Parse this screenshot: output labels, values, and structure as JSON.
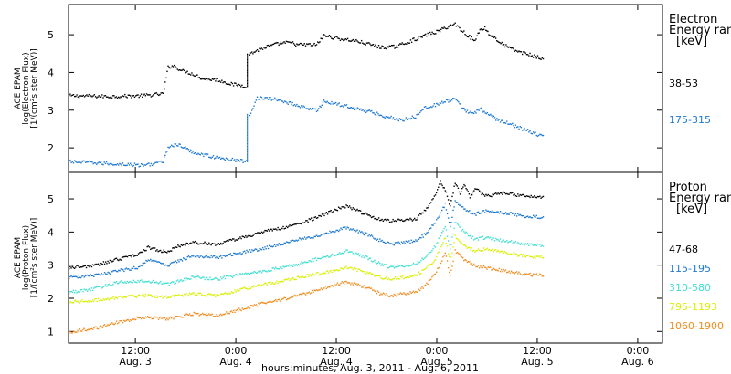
{
  "chart_data": [
    {
      "type": "scatter",
      "ylabel_lines": [
        "ACE EPAM",
        "log(Electron Flux)",
        "[1/(cm²s ster MeV)]"
      ],
      "yticks": [
        2,
        3,
        4,
        5
      ],
      "ylim": [
        1.35,
        5.8
      ],
      "legend_title": [
        "Electron",
        "Energy ran",
        "[keV]"
      ],
      "grid": false,
      "series": [
        {
          "name": "38-53",
          "color": "#000000",
          "x": [
            0,
            0.08,
            0.15,
            0.19,
            0.2,
            0.21,
            0.23,
            0.25,
            0.27,
            0.3,
            0.33,
            0.36,
            0.365,
            0.38,
            0.4,
            0.43,
            0.45,
            0.46,
            0.48,
            0.5,
            0.515,
            0.53,
            0.55,
            0.58,
            0.61,
            0.63,
            0.66,
            0.69,
            0.72,
            0.745,
            0.76,
            0.78,
            0.8,
            0.82,
            0.83,
            0.84,
            0.85,
            0.86,
            0.87,
            0.9,
            0.94,
            0.96
          ],
          "y": [
            3.4,
            3.38,
            3.4,
            3.45,
            4.15,
            4.2,
            4.05,
            3.98,
            3.85,
            3.82,
            3.7,
            3.65,
            4.5,
            4.6,
            4.7,
            4.8,
            4.8,
            4.75,
            4.75,
            4.75,
            5.0,
            4.95,
            4.9,
            4.85,
            4.75,
            4.68,
            4.7,
            4.85,
            5.0,
            5.1,
            5.2,
            5.3,
            5.05,
            4.85,
            5.15,
            5.2,
            5.0,
            4.95,
            4.8,
            4.6,
            4.45,
            4.35
          ]
        },
        {
          "name": "175-315",
          "color": "#1e78d2",
          "x": [
            0,
            0.08,
            0.15,
            0.19,
            0.2,
            0.22,
            0.25,
            0.3,
            0.33,
            0.36,
            0.365,
            0.38,
            0.42,
            0.46,
            0.5,
            0.515,
            0.55,
            0.6,
            0.64,
            0.67,
            0.7,
            0.72,
            0.74,
            0.76,
            0.78,
            0.8,
            0.82,
            0.83,
            0.86,
            0.9,
            0.94,
            0.96
          ],
          "y": [
            1.65,
            1.6,
            1.55,
            1.65,
            2.05,
            2.1,
            1.9,
            1.75,
            1.7,
            1.65,
            2.9,
            3.35,
            3.3,
            3.15,
            3.0,
            3.25,
            3.15,
            3.0,
            2.85,
            2.75,
            2.85,
            3.1,
            3.15,
            3.25,
            3.3,
            3.0,
            2.95,
            3.05,
            2.8,
            2.6,
            2.4,
            2.3
          ]
        }
      ]
    },
    {
      "type": "scatter",
      "ylabel_lines": [
        "ACE EPAM",
        "log(Proton Flux)",
        "[1/(cm²s ster MeV)]"
      ],
      "yticks": [
        1,
        2,
        3,
        4,
        5
      ],
      "ylim": [
        0.65,
        5.8
      ],
      "legend_title": [
        "Proton",
        "Energy ran",
        "[keV]"
      ],
      "grid": false,
      "series": [
        {
          "name": "47-68",
          "color": "#000000",
          "x": [
            0,
            0.05,
            0.1,
            0.14,
            0.16,
            0.2,
            0.22,
            0.25,
            0.3,
            0.35,
            0.4,
            0.45,
            0.5,
            0.54,
            0.56,
            0.6,
            0.63,
            0.65,
            0.7,
            0.72,
            0.74,
            0.75,
            0.76,
            0.77,
            0.78,
            0.79,
            0.8,
            0.81,
            0.82,
            0.84,
            0.88,
            0.92,
            0.96
          ],
          "y": [
            2.95,
            3.0,
            3.2,
            3.35,
            3.55,
            3.4,
            3.6,
            3.7,
            3.65,
            3.85,
            4.05,
            4.2,
            4.45,
            4.7,
            4.8,
            4.55,
            4.4,
            4.35,
            4.4,
            4.7,
            5.1,
            5.55,
            5.3,
            4.8,
            5.5,
            5.2,
            5.45,
            5.05,
            5.35,
            5.1,
            5.2,
            5.1,
            5.05
          ]
        },
        {
          "name": "115-195",
          "color": "#1e78d2",
          "x": [
            0,
            0.05,
            0.1,
            0.14,
            0.16,
            0.2,
            0.22,
            0.25,
            0.3,
            0.35,
            0.4,
            0.45,
            0.5,
            0.54,
            0.56,
            0.6,
            0.63,
            0.65,
            0.7,
            0.72,
            0.74,
            0.76,
            0.77,
            0.78,
            0.8,
            0.82,
            0.84,
            0.88,
            0.92,
            0.96
          ],
          "y": [
            2.65,
            2.7,
            2.85,
            2.95,
            3.2,
            3.0,
            3.15,
            3.3,
            3.25,
            3.4,
            3.55,
            3.75,
            3.9,
            4.05,
            4.15,
            3.95,
            3.75,
            3.65,
            3.75,
            3.95,
            4.3,
            4.85,
            4.2,
            4.95,
            4.7,
            4.55,
            4.65,
            4.6,
            4.5,
            4.45
          ]
        },
        {
          "name": "310-580",
          "color": "#40e0d0",
          "x": [
            0,
            0.05,
            0.1,
            0.15,
            0.2,
            0.25,
            0.3,
            0.35,
            0.4,
            0.45,
            0.5,
            0.54,
            0.56,
            0.6,
            0.63,
            0.65,
            0.7,
            0.72,
            0.74,
            0.76,
            0.77,
            0.78,
            0.8,
            0.82,
            0.84,
            0.88,
            0.92,
            0.96
          ],
          "y": [
            2.2,
            2.3,
            2.5,
            2.55,
            2.45,
            2.65,
            2.6,
            2.75,
            2.85,
            3.0,
            3.2,
            3.35,
            3.45,
            3.25,
            3.05,
            2.95,
            3.05,
            3.25,
            3.6,
            4.2,
            3.5,
            4.3,
            4.0,
            3.8,
            3.85,
            3.75,
            3.65,
            3.6
          ]
        },
        {
          "name": "795-1193",
          "color": "#d8f000",
          "x": [
            0,
            0.05,
            0.1,
            0.15,
            0.2,
            0.25,
            0.3,
            0.35,
            0.4,
            0.45,
            0.5,
            0.54,
            0.56,
            0.6,
            0.63,
            0.65,
            0.7,
            0.72,
            0.74,
            0.76,
            0.77,
            0.78,
            0.8,
            0.82,
            0.84,
            0.88,
            0.92,
            0.96
          ],
          "y": [
            1.9,
            1.95,
            2.05,
            2.1,
            2.05,
            2.15,
            2.1,
            2.3,
            2.45,
            2.6,
            2.75,
            2.85,
            2.95,
            2.8,
            2.65,
            2.6,
            2.7,
            2.9,
            3.2,
            3.85,
            3.1,
            3.9,
            3.6,
            3.45,
            3.5,
            3.4,
            3.3,
            3.25
          ]
        },
        {
          "name": "1060-1900",
          "color": "#f08c1e",
          "x": [
            0,
            0.05,
            0.1,
            0.15,
            0.2,
            0.25,
            0.3,
            0.35,
            0.4,
            0.45,
            0.5,
            0.54,
            0.56,
            0.6,
            0.63,
            0.65,
            0.7,
            0.72,
            0.74,
            0.76,
            0.77,
            0.78,
            0.8,
            0.82,
            0.84,
            0.88,
            0.92,
            0.96
          ],
          "y": [
            1.0,
            1.1,
            1.3,
            1.45,
            1.4,
            1.55,
            1.5,
            1.7,
            1.9,
            2.05,
            2.25,
            2.45,
            2.5,
            2.35,
            2.15,
            2.1,
            2.2,
            2.4,
            2.75,
            3.4,
            2.7,
            3.45,
            3.15,
            3.0,
            2.95,
            2.85,
            2.75,
            2.7
          ]
        }
      ]
    }
  ],
  "x_axis": {
    "ticks": [
      {
        "pos": 0.135,
        "time": "12:00",
        "day": "Aug. 3"
      },
      {
        "pos": 0.338,
        "time": "0:00",
        "day": "Aug. 4"
      },
      {
        "pos": 0.541,
        "time": "12:00",
        "day": "Aug. 4"
      },
      {
        "pos": 0.744,
        "time": "0:00",
        "day": "Aug. 5"
      },
      {
        "pos": 0.947,
        "time": "12:00",
        "day": "Aug. 5"
      },
      {
        "pos": 1.15,
        "time": "0:00",
        "day": "Aug. 6"
      }
    ],
    "caption": "hours:minutes, Aug.  3, 2011 - Aug.  6, 2011"
  }
}
